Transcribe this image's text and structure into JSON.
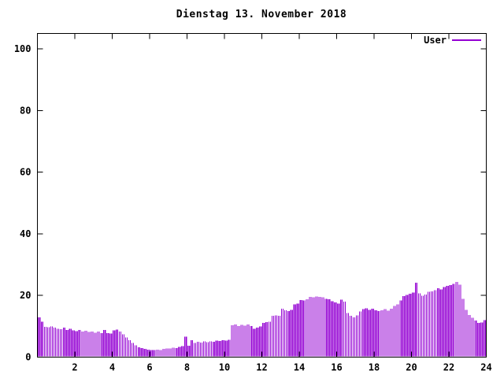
{
  "title": "Dienstag 13. November 2018",
  "legend": {
    "label": "User"
  },
  "colors": {
    "series": "#9400d3",
    "axis": "#000000",
    "background": "#ffffff"
  },
  "chart_data": {
    "type": "bar",
    "title": "Dienstag 13. November 2018",
    "xlabel": "",
    "ylabel": "",
    "xlim": [
      0,
      24
    ],
    "ylim": [
      0,
      105
    ],
    "x_ticks": [
      2,
      4,
      6,
      8,
      10,
      12,
      14,
      16,
      18,
      20,
      22,
      24
    ],
    "y_ticks": [
      0,
      20,
      40,
      60,
      80,
      100
    ],
    "grid": false,
    "legend_position": "top-right-inside",
    "sample_interval_minutes": 10,
    "series": [
      {
        "name": "User",
        "color": "#9400d3",
        "values": [
          12.6,
          11.2,
          9.6,
          9.4,
          9.7,
          9.3,
          9.0,
          8.8,
          9.3,
          8.6,
          8.9,
          8.4,
          8.2,
          8.5,
          8.0,
          8.3,
          7.9,
          8.1,
          7.7,
          8.0,
          7.5,
          8.5,
          7.6,
          7.4,
          8.4,
          8.7,
          8.1,
          7.2,
          6.1,
          5.2,
          4.4,
          3.6,
          3.0,
          2.7,
          2.4,
          2.2,
          2.1,
          2.0,
          2.2,
          2.1,
          2.4,
          2.5,
          2.6,
          2.8,
          2.7,
          3.1,
          3.3,
          6.4,
          3.4,
          5.3,
          4.4,
          4.7,
          4.5,
          4.8,
          4.6,
          4.9,
          4.7,
          5.1,
          5.0,
          5.3,
          5.1,
          5.4,
          10.1,
          10.3,
          9.9,
          10.2,
          10.0,
          10.3,
          9.9,
          9.0,
          9.3,
          9.7,
          10.9,
          11.1,
          11.3,
          13.1,
          13.3,
          13.2,
          15.4,
          14.9,
          14.7,
          15.1,
          16.9,
          17.1,
          18.3,
          18.1,
          18.5,
          19.3,
          19.1,
          19.4,
          19.3,
          19.1,
          18.7,
          18.5,
          17.9,
          17.5,
          17.1,
          18.4,
          17.7,
          14.1,
          13.1,
          12.7,
          13.3,
          14.5,
          15.3,
          15.6,
          15.1,
          15.4,
          14.9,
          14.7,
          15.0,
          15.3,
          14.8,
          15.5,
          16.3,
          16.9,
          18.1,
          19.5,
          19.9,
          20.3,
          20.7,
          23.9,
          20.5,
          19.7,
          20.1,
          20.9,
          21.1,
          21.5,
          22.1,
          21.7,
          22.5,
          22.9,
          23.1,
          23.5,
          24.1,
          23.3,
          18.6,
          15.1,
          13.4,
          12.5,
          11.6,
          10.9,
          11.0,
          11.8
        ]
      }
    ]
  }
}
